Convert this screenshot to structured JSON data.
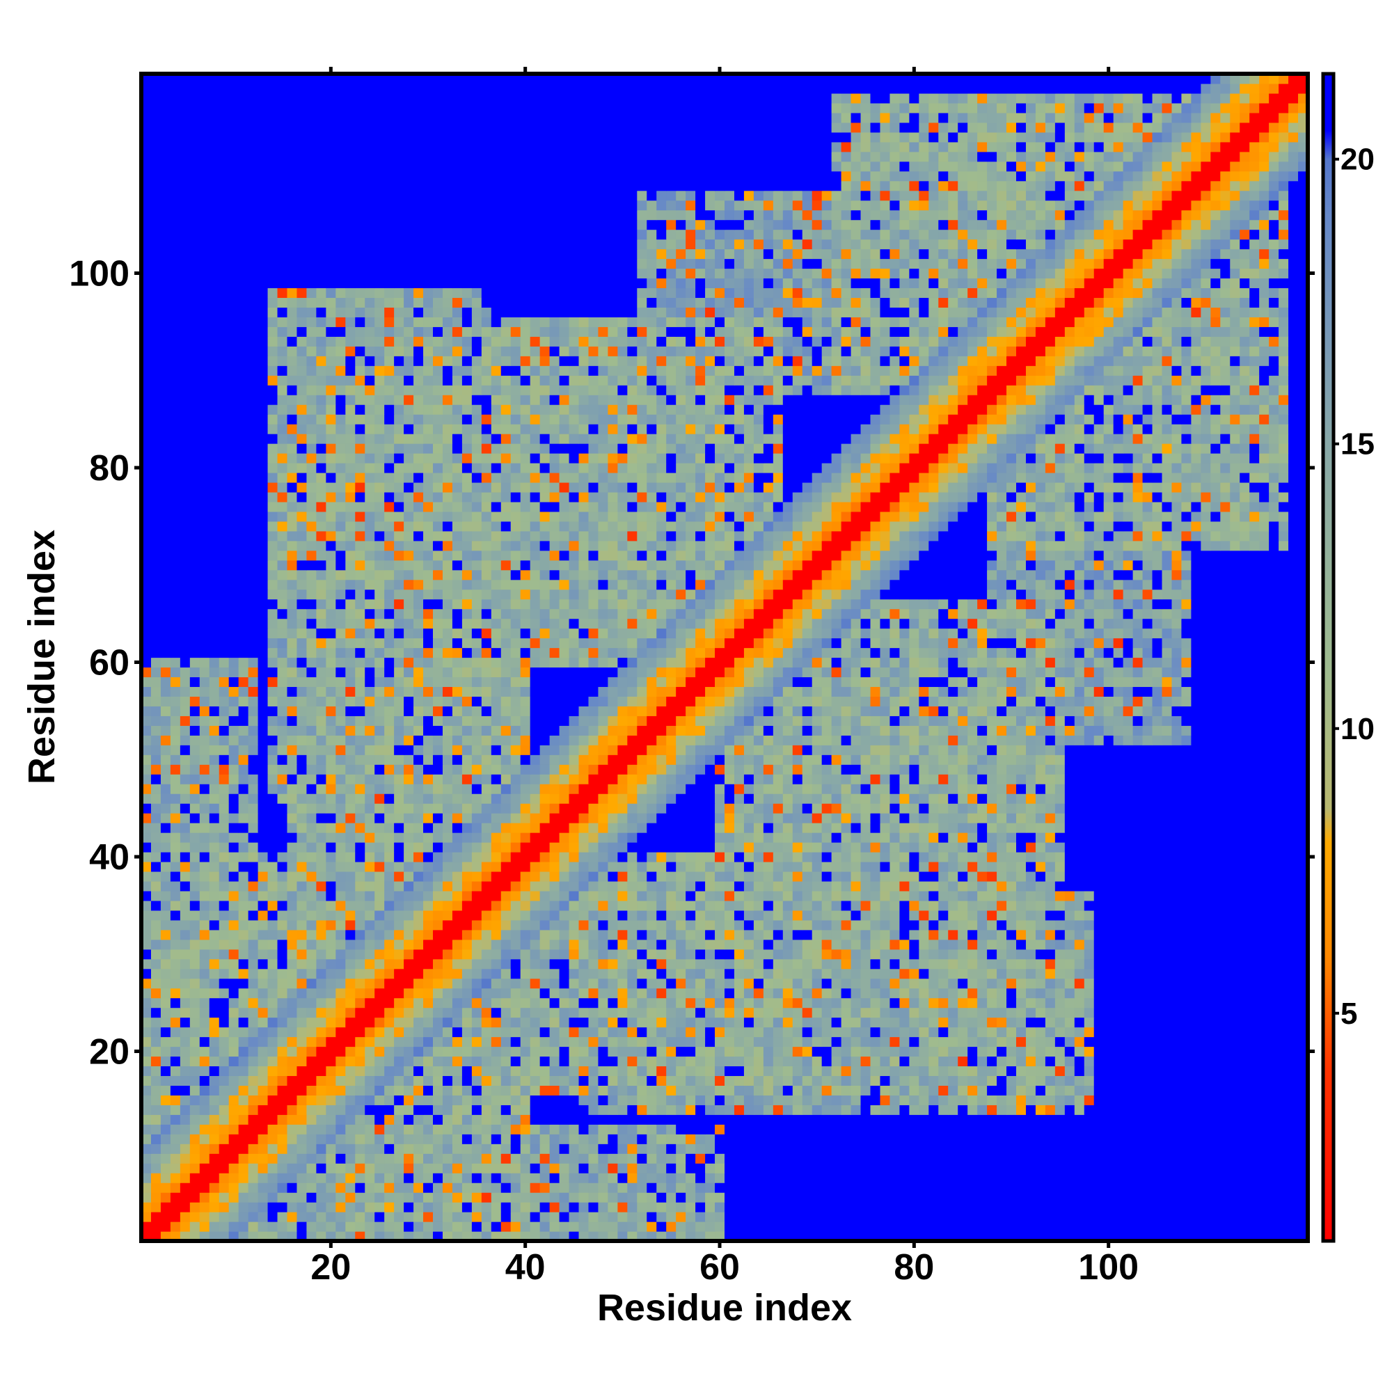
{
  "chart_data": {
    "type": "heatmap",
    "description_units": "pairwise residue distance (colorbar)",
    "xlabel": "Residue index",
    "ylabel": "Residue index",
    "n_residues": 120,
    "xlim": [
      0.5,
      120.5
    ],
    "ylim": [
      0.5,
      120.5
    ],
    "x_ticks": [
      20,
      40,
      60,
      80,
      100
    ],
    "y_ticks": [
      20,
      40,
      60,
      80,
      100
    ],
    "x_tick_labels": [
      "20",
      "40",
      "60",
      "80",
      "100"
    ],
    "y_tick_labels": [
      "20",
      "40",
      "60",
      "80",
      "100"
    ],
    "colorbar": {
      "range": [
        1,
        21.5
      ],
      "ticks": [
        5,
        10,
        15,
        20
      ],
      "tick_labels": [
        "5",
        "10",
        "15",
        "20"
      ]
    },
    "colorscale": [
      {
        "value": 1.0,
        "color": "#ff0000"
      },
      {
        "value": 4.0,
        "color": "#ff3300"
      },
      {
        "value": 6.0,
        "color": "#ff8800"
      },
      {
        "value": 8.0,
        "color": "#ffaa00"
      },
      {
        "value": 8.6,
        "color": "#b8b870"
      },
      {
        "value": 11.0,
        "color": "#9fbb8f"
      },
      {
        "value": 15.0,
        "color": "#88a8a8"
      },
      {
        "value": 19.0,
        "color": "#6688c8"
      },
      {
        "value": 20.0,
        "color": "#5577cc"
      },
      {
        "value": 20.5,
        "color": "#0000ff"
      },
      {
        "value": 21.5,
        "color": "#0000ff"
      }
    ],
    "background_value": 21.5,
    "diagonal_band": {
      "width_residues": 1.5,
      "value": 1.0
    },
    "contact_regions": [
      {
        "x_range": [
          1,
          40
        ],
        "y_range": [
          1,
          40
        ],
        "value": 13
      },
      {
        "x_range": [
          1,
          60
        ],
        "y_range": [
          1,
          12
        ],
        "value": 14
      },
      {
        "x_range": [
          16,
          40
        ],
        "y_range": [
          40,
          92
        ],
        "value": 13
      },
      {
        "x_range": [
          38,
          65
        ],
        "y_range": [
          68,
          95
        ],
        "value": 13
      },
      {
        "x_range": [
          46,
          98
        ],
        "y_range": [
          14,
          36
        ],
        "value": 14
      },
      {
        "x_range": [
          60,
          94
        ],
        "y_range": [
          36,
          66
        ],
        "value": 13
      },
      {
        "x_range": [
          72,
          112
        ],
        "y_range": [
          88,
          118
        ],
        "value": 13
      },
      {
        "x_range": [
          52,
          92
        ],
        "y_range": [
          88,
          108
        ],
        "value": 15
      }
    ],
    "grid": false,
    "legend": "colorbar right"
  }
}
